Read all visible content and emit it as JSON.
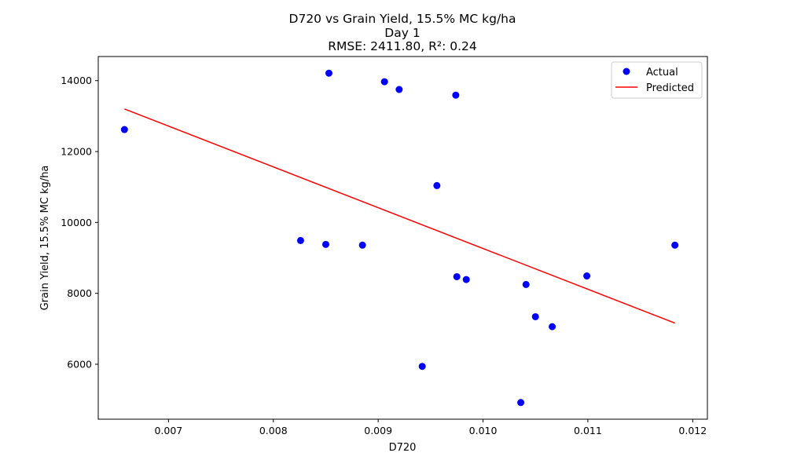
{
  "chart_data": {
    "type": "scatter",
    "title_lines": [
      "D720 vs Grain Yield, 15.5% MC kg/ha",
      "Day 1",
      "RMSE: 2411.80, R²: 0.24"
    ],
    "xlabel": "D720",
    "ylabel": "Grain Yield, 15.5% MC kg/ha",
    "xlim": [
      0.00633,
      0.01214
    ],
    "ylim": [
      4450,
      14680
    ],
    "xticks": [
      {
        "value": 0.007,
        "label": "0.007"
      },
      {
        "value": 0.008,
        "label": "0.008"
      },
      {
        "value": 0.009,
        "label": "0.009"
      },
      {
        "value": 0.01,
        "label": "0.010"
      },
      {
        "value": 0.011,
        "label": "0.011"
      },
      {
        "value": 0.012,
        "label": "0.012"
      }
    ],
    "yticks": [
      {
        "value": 6000,
        "label": "6000"
      },
      {
        "value": 8000,
        "label": "8000"
      },
      {
        "value": 10000,
        "label": "10000"
      },
      {
        "value": 12000,
        "label": "12000"
      },
      {
        "value": 14000,
        "label": "14000"
      }
    ],
    "grid": false,
    "legend_position": "top-right",
    "series": [
      {
        "name": "Actual",
        "kind": "scatter",
        "color": "#0000ff",
        "points": [
          {
            "x": 0.00658,
            "y": 12620
          },
          {
            "x": 0.00826,
            "y": 9490
          },
          {
            "x": 0.0085,
            "y": 9380
          },
          {
            "x": 0.00853,
            "y": 14210
          },
          {
            "x": 0.00885,
            "y": 9360
          },
          {
            "x": 0.00906,
            "y": 13970
          },
          {
            "x": 0.0092,
            "y": 13750
          },
          {
            "x": 0.00942,
            "y": 5940
          },
          {
            "x": 0.00956,
            "y": 11040
          },
          {
            "x": 0.00974,
            "y": 13590
          },
          {
            "x": 0.00975,
            "y": 8470
          },
          {
            "x": 0.00984,
            "y": 8390
          },
          {
            "x": 0.01036,
            "y": 4920
          },
          {
            "x": 0.01041,
            "y": 8250
          },
          {
            "x": 0.0105,
            "y": 7340
          },
          {
            "x": 0.01066,
            "y": 7060
          },
          {
            "x": 0.01099,
            "y": 8490
          },
          {
            "x": 0.01183,
            "y": 9360
          }
        ]
      },
      {
        "name": "Predicted",
        "kind": "line",
        "color": "#ff0000",
        "points": [
          {
            "x": 0.00658,
            "y": 13200
          },
          {
            "x": 0.01183,
            "y": 7160
          }
        ]
      }
    ]
  }
}
